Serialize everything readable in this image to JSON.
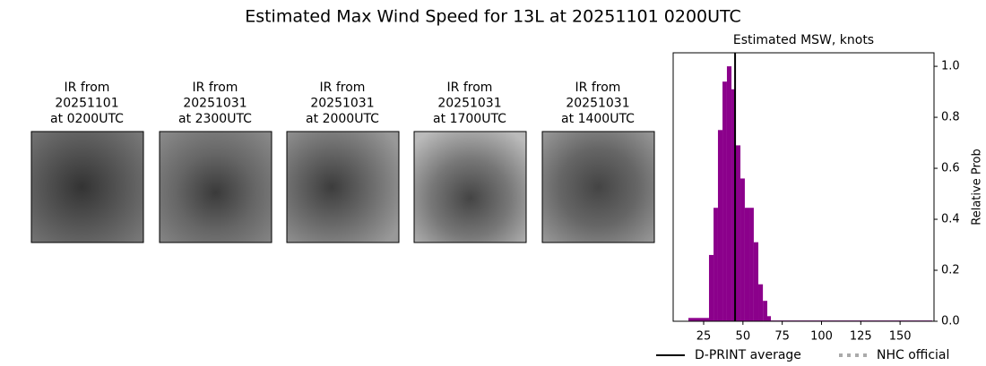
{
  "title": "Estimated Max Wind Speed for 13L at 20251101 0200UTC",
  "panels": [
    {
      "lines": [
        "IR from",
        "20251101",
        "at 0200UTC"
      ]
    },
    {
      "lines": [
        "IR from",
        "20251031",
        "at 2300UTC"
      ]
    },
    {
      "lines": [
        "IR from",
        "20251031",
        "at 2000UTC"
      ]
    },
    {
      "lines": [
        "IR from",
        "20251031",
        "at 1700UTC"
      ]
    },
    {
      "lines": [
        "IR from",
        "20251031",
        "at 1400UTC"
      ]
    }
  ],
  "chart_data": {
    "type": "histogram",
    "title": "Estimated MSW, knots",
    "y_label": "Relative Prob",
    "color": "#8b008b",
    "bins": [
      15.3,
      28.4,
      31.3,
      34.1,
      37.0,
      39.8,
      42.7,
      45.5,
      48.4,
      51.2,
      54.1,
      56.9,
      59.8,
      62.7,
      65.5,
      67.8,
      170.5
    ],
    "values": [
      0.013,
      0.26,
      0.445,
      0.75,
      0.94,
      1.0,
      0.91,
      0.69,
      0.56,
      0.445,
      0.445,
      0.31,
      0.145,
      0.08,
      0.02,
      0.003
    ],
    "xlim": [
      5.6,
      171.6
    ],
    "xticks": [
      25,
      50,
      75,
      100,
      125,
      150
    ],
    "ylim": [
      0,
      1.053
    ],
    "yticks": [
      {
        "value": 0,
        "label": "0.0"
      },
      {
        "value": 0.2,
        "label": "0.2"
      },
      {
        "value": 0.4,
        "label": "0.4"
      },
      {
        "value": 0.6,
        "label": "0.6"
      },
      {
        "value": 0.8,
        "label": "0.8"
      },
      {
        "value": 1.0,
        "label": "1.0"
      }
    ],
    "y_axis_side": "right",
    "lines": [
      {
        "name": "D-PRINT average",
        "color": "#000000",
        "value": 45.0
      }
    ],
    "legend_extra": [
      {
        "name": "NHC official",
        "color": "#aaaaaa",
        "style": "dotted"
      }
    ]
  }
}
